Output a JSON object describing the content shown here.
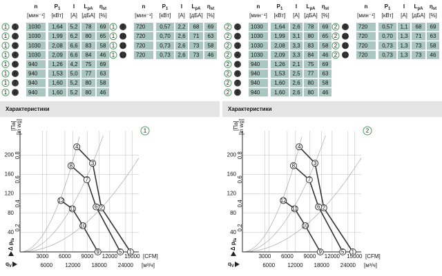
{
  "panels": [
    {
      "table": {
        "headers": [
          {
            "name": "n",
            "unit": "[мин⁻¹]"
          },
          {
            "name": "P",
            "sub": "1",
            "unit": "[кВт]"
          },
          {
            "name": "I",
            "unit": "[A]"
          },
          {
            "name": "L",
            "sub": "pA",
            "unit": "[дБА]"
          },
          {
            "name": "η",
            "sub": "st",
            "unit": "[%]"
          }
        ],
        "rows": [
          {
            "variant": "1",
            "id": "1",
            "values": [
              "1030",
              "1,64",
              "5,2",
              "78",
              "69"
            ]
          },
          {
            "variant": "1",
            "id": "2",
            "values": [
              "1030",
              "1,99",
              "6,2",
              "80",
              "65"
            ]
          },
          {
            "variant": "1",
            "id": "3",
            "values": [
              "1030",
              "2,08",
              "6,6",
              "83",
              "58"
            ]
          },
          {
            "variant": "1",
            "id": "4",
            "values": [
              "1030",
              "2,09",
              "6,6",
              "84",
              "46"
            ]
          },
          {
            "variant": "1",
            "id": "5",
            "values": [
              "940",
              "1,26",
              "4,2",
              "75",
              "69"
            ]
          },
          {
            "variant": "1",
            "id": "6",
            "values": [
              "940",
              "1,53",
              "5,0",
              "77",
              "63"
            ]
          },
          {
            "variant": "1",
            "id": "7",
            "values": [
              "940",
              "1,60",
              "5,2",
              "80",
              "58"
            ]
          },
          {
            "variant": "1",
            "id": "8",
            "values": [
              "940",
              "1,60",
              "5,2",
              "80",
              "46"
            ]
          },
          {
            "variant": "1",
            "id": "9",
            "values": [
              "720",
              "0,57",
              "2,2",
              "68",
              "69"
            ]
          },
          {
            "variant": "1",
            "id": "10",
            "values": [
              "720",
              "0,70",
              "2,6",
              "71",
              "63"
            ]
          },
          {
            "variant": "1",
            "id": "11",
            "values": [
              "720",
              "0,73",
              "2,6",
              "73",
              "58"
            ]
          },
          {
            "variant": "1",
            "id": "12",
            "values": [
              "720",
              "0,73",
              "2,6",
              "73",
              "46"
            ]
          }
        ]
      },
      "section_title": "Характеристики",
      "chart": {
        "type": "line",
        "badge": "1",
        "y_label": "Δ p",
        "y_label_sub": "fa",
        "y_unit": "[Па]",
        "y2_unit": "[in wg]",
        "x_label": "q",
        "x_label_sub": "V",
        "x_unit": "[м³/ч]",
        "x2_unit": "[CFM]",
        "xlim": [
          0,
          27000
        ],
        "ylim": [
          0,
          250
        ],
        "x2lim": [
          0,
          15891
        ],
        "y2lim": [
          0,
          1.0036
        ],
        "xticks": [
          6000,
          12000,
          18000,
          24000
        ],
        "yticks": [
          40,
          80,
          120,
          160,
          200
        ],
        "x2ticks": [
          3000,
          6000,
          9000,
          12000,
          15000
        ],
        "y2ticks": [
          {
            "value": 0.2,
            "label": "0,2"
          },
          {
            "value": 0.4,
            "label": "0,4"
          },
          {
            "value": 0.6,
            "label": "0,6"
          },
          {
            "value": 0.8,
            "label": "0,8"
          }
        ],
        "grid": true,
        "series": [
          {
            "color": "#333333",
            "labels": [
              "4",
              "3",
              "2",
              "1"
            ],
            "x": [
              12900,
              16500,
              18500,
              25100
            ],
            "values": [
              217,
              183,
              91,
              0
            ]
          },
          {
            "color": "#333333",
            "labels": [
              "8",
              "7",
              "6",
              "5"
            ],
            "x": [
              11600,
              15200,
              17300,
              22800
            ],
            "values": [
              178,
              149,
              93,
              0
            ]
          },
          {
            "color": "#333333",
            "labels": [
              "12",
              "11",
              "10",
              "9"
            ],
            "x": [
              9300,
              11900,
              14300,
              17700
            ],
            "values": [
              106,
              89,
              54,
              0
            ]
          }
        ]
      }
    },
    {
      "table": {
        "headers": [
          {
            "name": "n",
            "unit": "[мин⁻¹]"
          },
          {
            "name": "P",
            "sub": "1",
            "unit": "[кВт]"
          },
          {
            "name": "I",
            "unit": "[A]"
          },
          {
            "name": "L",
            "sub": "pA",
            "unit": "[дБА]"
          },
          {
            "name": "η",
            "sub": "st",
            "unit": "[%]"
          }
        ],
        "rows": [
          {
            "variant": "2",
            "id": "1",
            "values": [
              "1030",
              "1,64",
              "2,6",
              "78",
              "69"
            ]
          },
          {
            "variant": "2",
            "id": "2",
            "values": [
              "1030",
              "1,99",
              "3,1",
              "80",
              "65"
            ]
          },
          {
            "variant": "2",
            "id": "3",
            "values": [
              "1030",
              "2,08",
              "3,3",
              "83",
              "58"
            ]
          },
          {
            "variant": "2",
            "id": "4",
            "values": [
              "1030",
              "2,09",
              "3,3",
              "84",
              "46"
            ]
          },
          {
            "variant": "2",
            "id": "5",
            "values": [
              "940",
              "1,26",
              "2,1",
              "75",
              "69"
            ]
          },
          {
            "variant": "2",
            "id": "6",
            "values": [
              "940",
              "1,53",
              "2,5",
              "77",
              "63"
            ]
          },
          {
            "variant": "2",
            "id": "7",
            "values": [
              "940",
              "1,60",
              "2,6",
              "80",
              "58"
            ]
          },
          {
            "variant": "2",
            "id": "8",
            "values": [
              "940",
              "1,60",
              "2,6",
              "80",
              "46"
            ]
          },
          {
            "variant": "2",
            "id": "9",
            "values": [
              "720",
              "0,57",
              "1,1",
              "68",
              "69"
            ]
          },
          {
            "variant": "2",
            "id": "10",
            "values": [
              "720",
              "0,70",
              "1,3",
              "71",
              "63"
            ]
          },
          {
            "variant": "2",
            "id": "11",
            "values": [
              "720",
              "0,73",
              "1,3",
              "73",
              "58"
            ]
          },
          {
            "variant": "2",
            "id": "12",
            "values": [
              "720",
              "0,73",
              "1,3",
              "73",
              "46"
            ]
          }
        ]
      },
      "section_title": "Характеристики",
      "chart": {
        "type": "line",
        "badge": "2",
        "y_label": "Δ p",
        "y_label_sub": "fa",
        "y_unit": "[Па]",
        "y2_unit": "[in wg]",
        "x_label": "q",
        "x_label_sub": "V",
        "x_unit": "[м³/ч]",
        "x2_unit": "[CFM]",
        "xlim": [
          0,
          27000
        ],
        "ylim": [
          0,
          250
        ],
        "x2lim": [
          0,
          15891
        ],
        "y2lim": [
          0,
          1.0036
        ],
        "xticks": [
          6000,
          12000,
          18000,
          24000
        ],
        "yticks": [
          40,
          80,
          120,
          160,
          200
        ],
        "x2ticks": [
          3000,
          6000,
          9000,
          12000,
          15000
        ],
        "y2ticks": [
          {
            "value": 0.2,
            "label": "0,2"
          },
          {
            "value": 0.4,
            "label": "0,4"
          },
          {
            "value": 0.6,
            "label": "0,6"
          },
          {
            "value": 0.8,
            "label": "0,8"
          }
        ],
        "grid": true,
        "series": [
          {
            "color": "#333333",
            "labels": [
              "4",
              "3",
              "2",
              "1"
            ],
            "x": [
              12900,
              16500,
              18500,
              25100
            ],
            "values": [
              217,
              183,
              91,
              0
            ]
          },
          {
            "color": "#333333",
            "labels": [
              "8",
              "7",
              "6",
              "5"
            ],
            "x": [
              11600,
              15200,
              17300,
              22800
            ],
            "values": [
              178,
              149,
              93,
              0
            ]
          },
          {
            "color": "#333333",
            "labels": [
              "12",
              "11",
              "10",
              "9"
            ],
            "x": [
              9300,
              11900,
              14300,
              17700
            ],
            "values": [
              106,
              89,
              54,
              0
            ]
          }
        ]
      }
    }
  ]
}
